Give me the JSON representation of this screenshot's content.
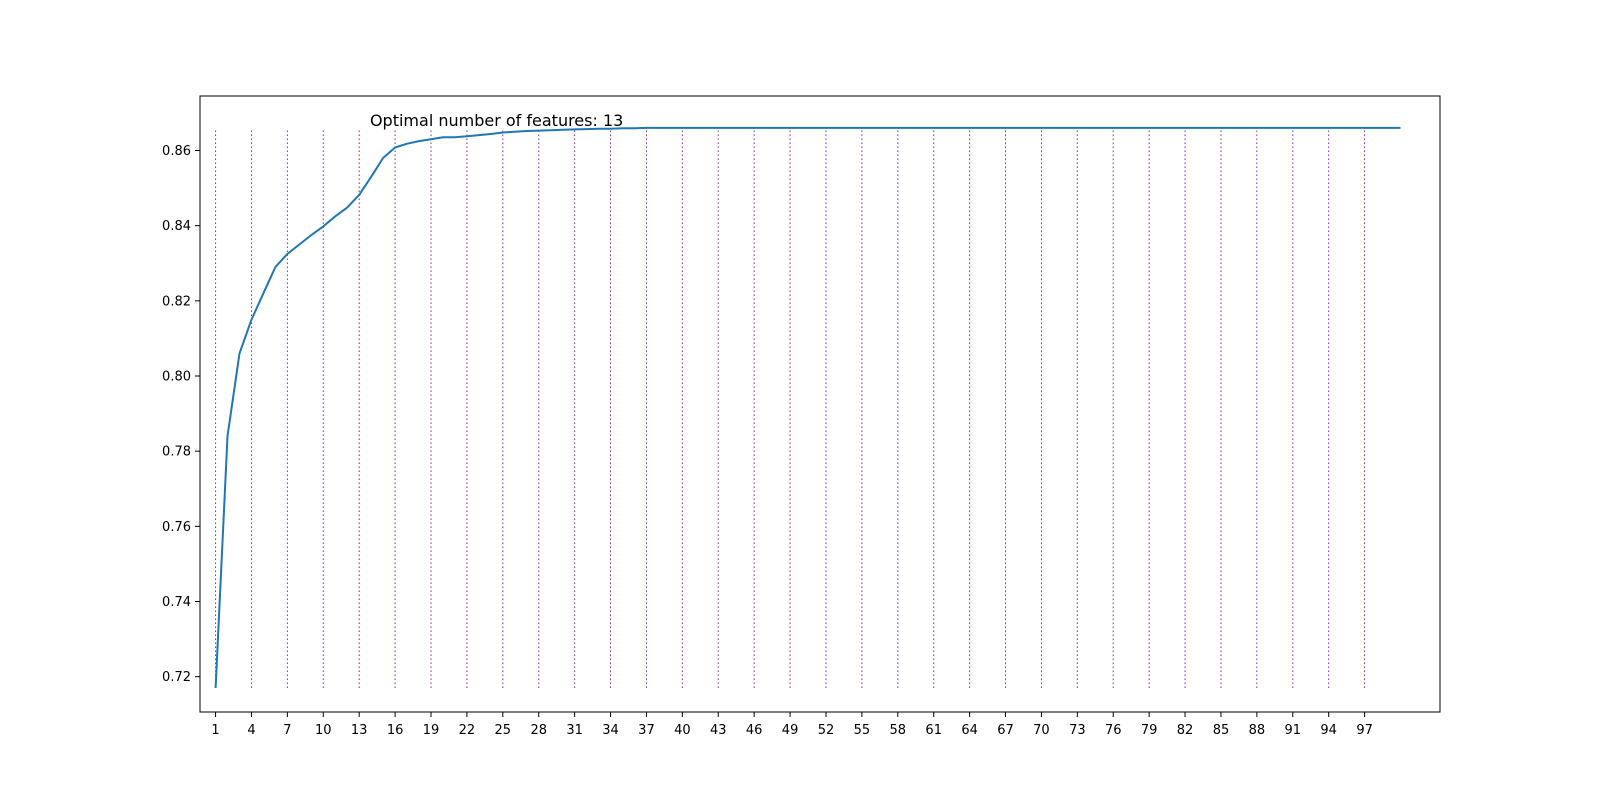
{
  "chart_data": {
    "type": "line",
    "title": "",
    "xlabel": "",
    "ylabel": "",
    "annotation": {
      "text": "Optimal number of features: 13",
      "x": 13.9,
      "y": 0.8665
    },
    "xlim": [
      -0.3,
      103.3
    ],
    "ylim": [
      0.7106,
      0.8745
    ],
    "x_ticks": [
      1,
      4,
      7,
      10,
      13,
      16,
      19,
      22,
      25,
      28,
      31,
      34,
      37,
      40,
      43,
      46,
      49,
      52,
      55,
      58,
      61,
      64,
      67,
      70,
      73,
      76,
      79,
      82,
      85,
      88,
      91,
      94,
      97
    ],
    "y_ticks": [
      0.72,
      0.74,
      0.76,
      0.78,
      0.8,
      0.82,
      0.84,
      0.86
    ],
    "y_tick_labels": [
      "0.72",
      "0.74",
      "0.76",
      "0.78",
      "0.80",
      "0.82",
      "0.84",
      "0.86"
    ],
    "vlines": {
      "x": [
        1,
        4,
        7,
        10,
        13,
        16,
        19,
        22,
        25,
        28,
        31,
        34,
        37,
        40,
        43,
        46,
        49,
        52,
        55,
        58,
        61,
        64,
        67,
        70,
        73,
        76,
        79,
        82,
        85,
        88,
        91,
        94,
        97
      ],
      "ymin": 0.717,
      "ymax": 0.866,
      "highlight_x": 13,
      "color": "#7b2fbf",
      "highlight_color": "#ff0000",
      "style": "dotted"
    },
    "series": [
      {
        "color": "#1f77b4",
        "x": [
          1,
          2,
          3,
          4,
          5,
          6,
          7,
          8,
          9,
          10,
          11,
          12,
          13,
          14,
          15,
          16,
          17,
          18,
          19,
          20,
          21,
          22,
          23,
          24,
          25,
          26,
          27,
          28,
          29,
          30,
          31,
          32,
          33,
          34,
          35,
          36,
          37,
          38,
          39,
          40,
          45,
          50,
          55,
          60,
          65,
          70,
          75,
          80,
          85,
          90,
          95,
          100
        ],
        "y": [
          0.717,
          0.784,
          0.806,
          0.815,
          0.822,
          0.829,
          0.8325,
          0.835,
          0.8375,
          0.8398,
          0.8425,
          0.8448,
          0.8482,
          0.853,
          0.858,
          0.8608,
          0.8618,
          0.8625,
          0.863,
          0.8635,
          0.8635,
          0.8638,
          0.8641,
          0.8644,
          0.8648,
          0.865,
          0.8652,
          0.8653,
          0.8654,
          0.8655,
          0.8656,
          0.8657,
          0.8658,
          0.8658,
          0.8659,
          0.8659,
          0.866,
          0.866,
          0.866,
          0.866,
          0.866,
          0.866,
          0.866,
          0.866,
          0.866,
          0.866,
          0.866,
          0.866,
          0.866,
          0.866,
          0.866,
          0.866
        ]
      }
    ]
  }
}
